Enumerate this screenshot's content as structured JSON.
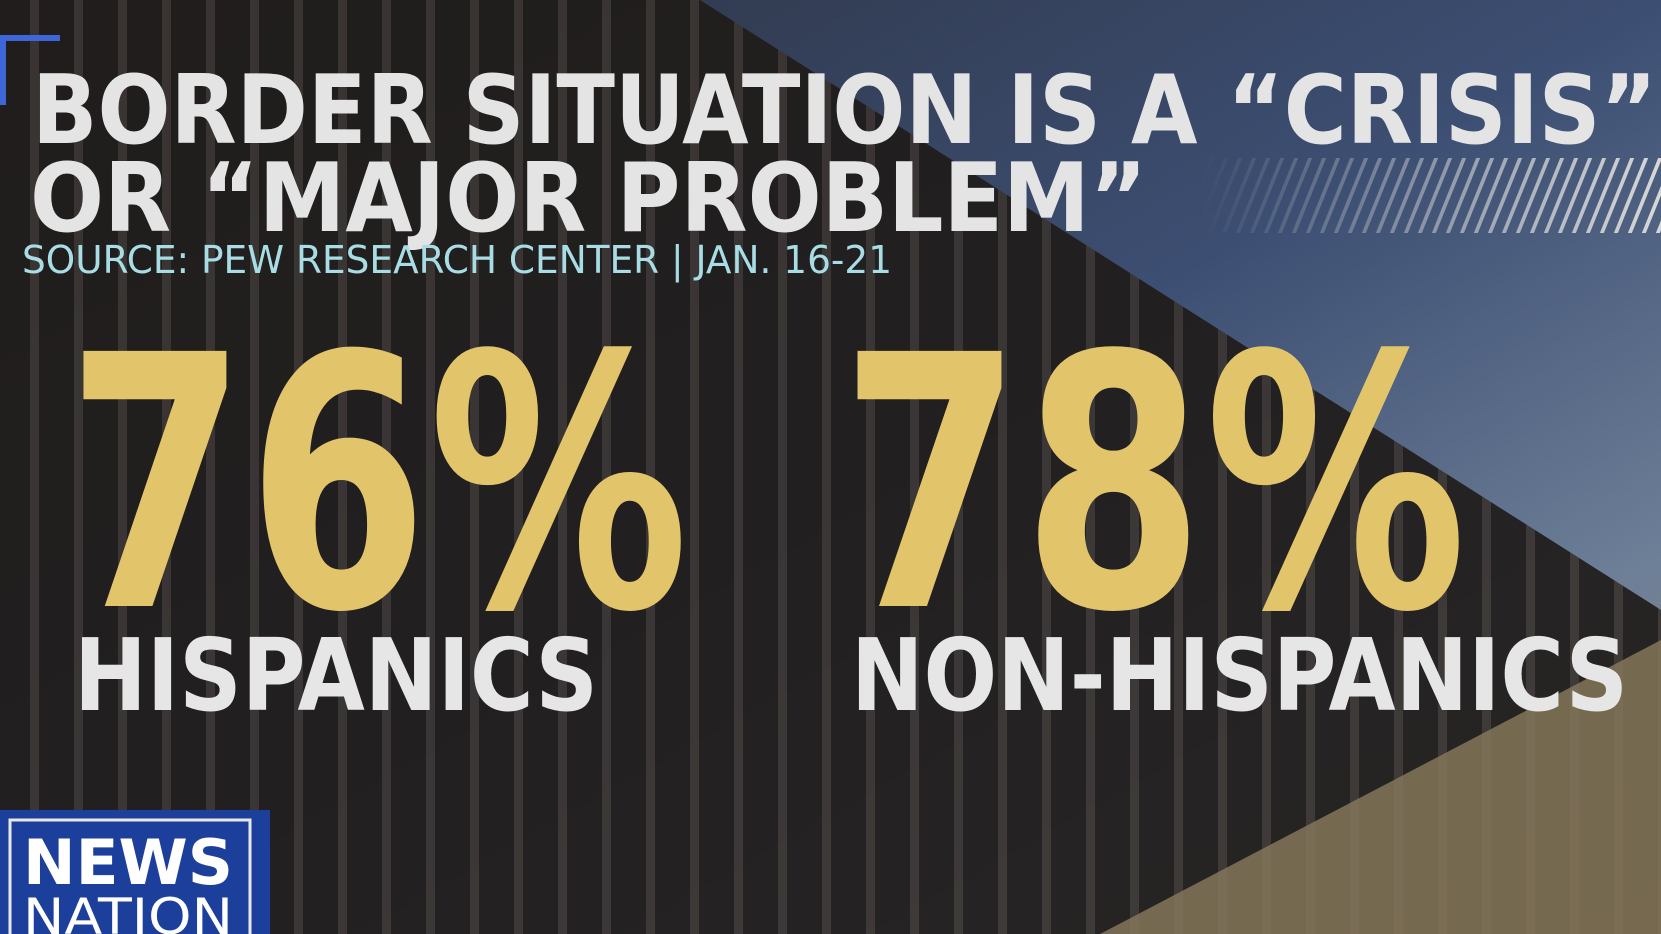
{
  "header": {
    "title_lines": [
      "BORDER SITUATION IS A “CRISIS”",
      "OR “MAJOR PROBLEM”"
    ],
    "source": "SOURCE: PEW RESEARCH CENTER | JAN. 16-21"
  },
  "stats": [
    {
      "value": "76%",
      "label": "HISPANICS"
    },
    {
      "value": "78%",
      "label": "NON-HISPANICS"
    }
  ],
  "logo": {
    "lines": [
      "NEWS",
      "NATION"
    ]
  }
}
